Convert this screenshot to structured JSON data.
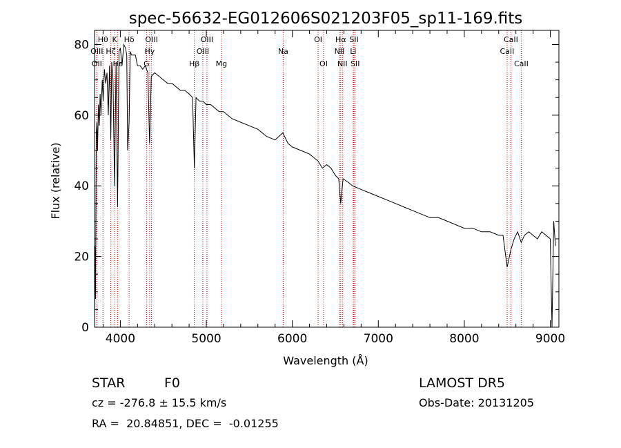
{
  "figure": {
    "title": "spec-56632-EG012606S021203F05_sp11-169.fits",
    "object_class": "STAR",
    "subclass": "F0",
    "survey": "LAMOST DR5",
    "redshift_line": "cz = -276.8 ± 15.5 km/s",
    "obs_date": "Obs-Date: 20131205",
    "coords": "RA =  20.84851, DEC =  -0.01255"
  },
  "chart_data": {
    "type": "line",
    "title": "spec-56632-EG012606S021203F05_sp11-169.fits",
    "xlabel": "Wavelength (Å)",
    "ylabel": "Flux (relative)",
    "xlim": [
      3700,
      9100
    ],
    "ylim": [
      0,
      84
    ],
    "xticks": [
      4000,
      5000,
      6000,
      7000,
      8000,
      9000
    ],
    "yticks": [
      0,
      20,
      40,
      60,
      80
    ],
    "line_color": "#000000",
    "marker_color": "#c00000",
    "series": [
      {
        "x": [
          3700,
          3705,
          3712,
          3720,
          3728,
          3735,
          3745,
          3755,
          3765,
          3775,
          3790,
          3800,
          3815,
          3830,
          3845,
          3860,
          3875,
          3889,
          3900,
          3915,
          3933,
          3950,
          3968,
          3985,
          4000,
          4020,
          4040,
          4060,
          4075,
          4085,
          4102,
          4115,
          4130,
          4150,
          4175,
          4200,
          4230,
          4260,
          4290,
          4320,
          4340,
          4360,
          4400,
          4450,
          4500,
          4550,
          4600,
          4650,
          4700,
          4750,
          4800,
          4840,
          4861,
          4880,
          4920,
          4960,
          5000,
          5050,
          5100,
          5150,
          5200,
          5300,
          5400,
          5500,
          5600,
          5700,
          5800,
          5890,
          5950,
          6000,
          6100,
          6200,
          6300,
          6350,
          6400,
          6450,
          6500,
          6540,
          6563,
          6590,
          6650,
          6700,
          6800,
          6900,
          7000,
          7100,
          7200,
          7300,
          7400,
          7500,
          7600,
          7700,
          7800,
          7900,
          8000,
          8100,
          8200,
          8300,
          8400,
          8450,
          8498,
          8542,
          8580,
          8620,
          8662,
          8700,
          8750,
          8800,
          8850,
          8900,
          8950,
          9000,
          9020,
          9040,
          9060
        ],
        "y": [
          0,
          23,
          8,
          55,
          58,
          50,
          63,
          57,
          66,
          60,
          70,
          64,
          73,
          69,
          72,
          60,
          74,
          53,
          75,
          70,
          40,
          75,
          34,
          78,
          79,
          74,
          80,
          79,
          77,
          50,
          58,
          78,
          77,
          77,
          77,
          74,
          74,
          73,
          74,
          72,
          52,
          71,
          72,
          71,
          70,
          69,
          69,
          68,
          67,
          67,
          66,
          65,
          45,
          65,
          64,
          64,
          63,
          63,
          62,
          61,
          61,
          59,
          58,
          57,
          56,
          54,
          53,
          55,
          52,
          51,
          50,
          49,
          47,
          45,
          46,
          45,
          43,
          42,
          35,
          42,
          41,
          40,
          39,
          38,
          37,
          36,
          35,
          34,
          33,
          32,
          31,
          31,
          30,
          29,
          28,
          28,
          27,
          27,
          26,
          26,
          17,
          22,
          25,
          27,
          24,
          26,
          27,
          26,
          25,
          27,
          26,
          25,
          0,
          30,
          23
        ]
      }
    ],
    "line_markers": [
      {
        "label": "OII",
        "wave": 3727,
        "row": 3
      },
      {
        "label": "OIII",
        "wave": 3727,
        "row": 2
      },
      {
        "label": "Hθ",
        "wave": 3798,
        "row": 1
      },
      {
        "label": "Hζ",
        "wave": 3889,
        "row": 2
      },
      {
        "label": "K",
        "wave": 3934,
        "row": 1
      },
      {
        "label": "Hε",
        "wave": 3970,
        "row": 3
      },
      {
        "label": "Hδ",
        "wave": 4102,
        "row": 1
      },
      {
        "label": "OIII",
        "wave": 4363,
        "row": 1
      },
      {
        "label": "Hγ",
        "wave": 4341,
        "row": 2
      },
      {
        "label": "G",
        "wave": 4305,
        "row": 3
      },
      {
        "label": "OIII",
        "wave": 5007,
        "row": 1
      },
      {
        "label": "OIII",
        "wave": 4959,
        "row": 2
      },
      {
        "label": "Hβ",
        "wave": 4861,
        "row": 3
      },
      {
        "label": "Mg",
        "wave": 5175,
        "row": 3
      },
      {
        "label": "Na",
        "wave": 5894,
        "row": 2
      },
      {
        "label": "OI",
        "wave": 6300,
        "row": 1
      },
      {
        "label": "OI",
        "wave": 6364,
        "row": 3
      },
      {
        "label": "Hα",
        "wave": 6563,
        "row": 1
      },
      {
        "label": "SII",
        "wave": 6717,
        "row": 1
      },
      {
        "label": "NII",
        "wave": 6548,
        "row": 2
      },
      {
        "label": "Li",
        "wave": 6708,
        "row": 2
      },
      {
        "label": "NII",
        "wave": 6583,
        "row": 3
      },
      {
        "label": "SII",
        "wave": 6731,
        "row": 3
      },
      {
        "label": "CaII",
        "wave": 8542,
        "row": 1
      },
      {
        "label": "CaII",
        "wave": 8498,
        "row": 2
      },
      {
        "label": "CaII",
        "wave": 8662,
        "row": 3
      }
    ]
  }
}
